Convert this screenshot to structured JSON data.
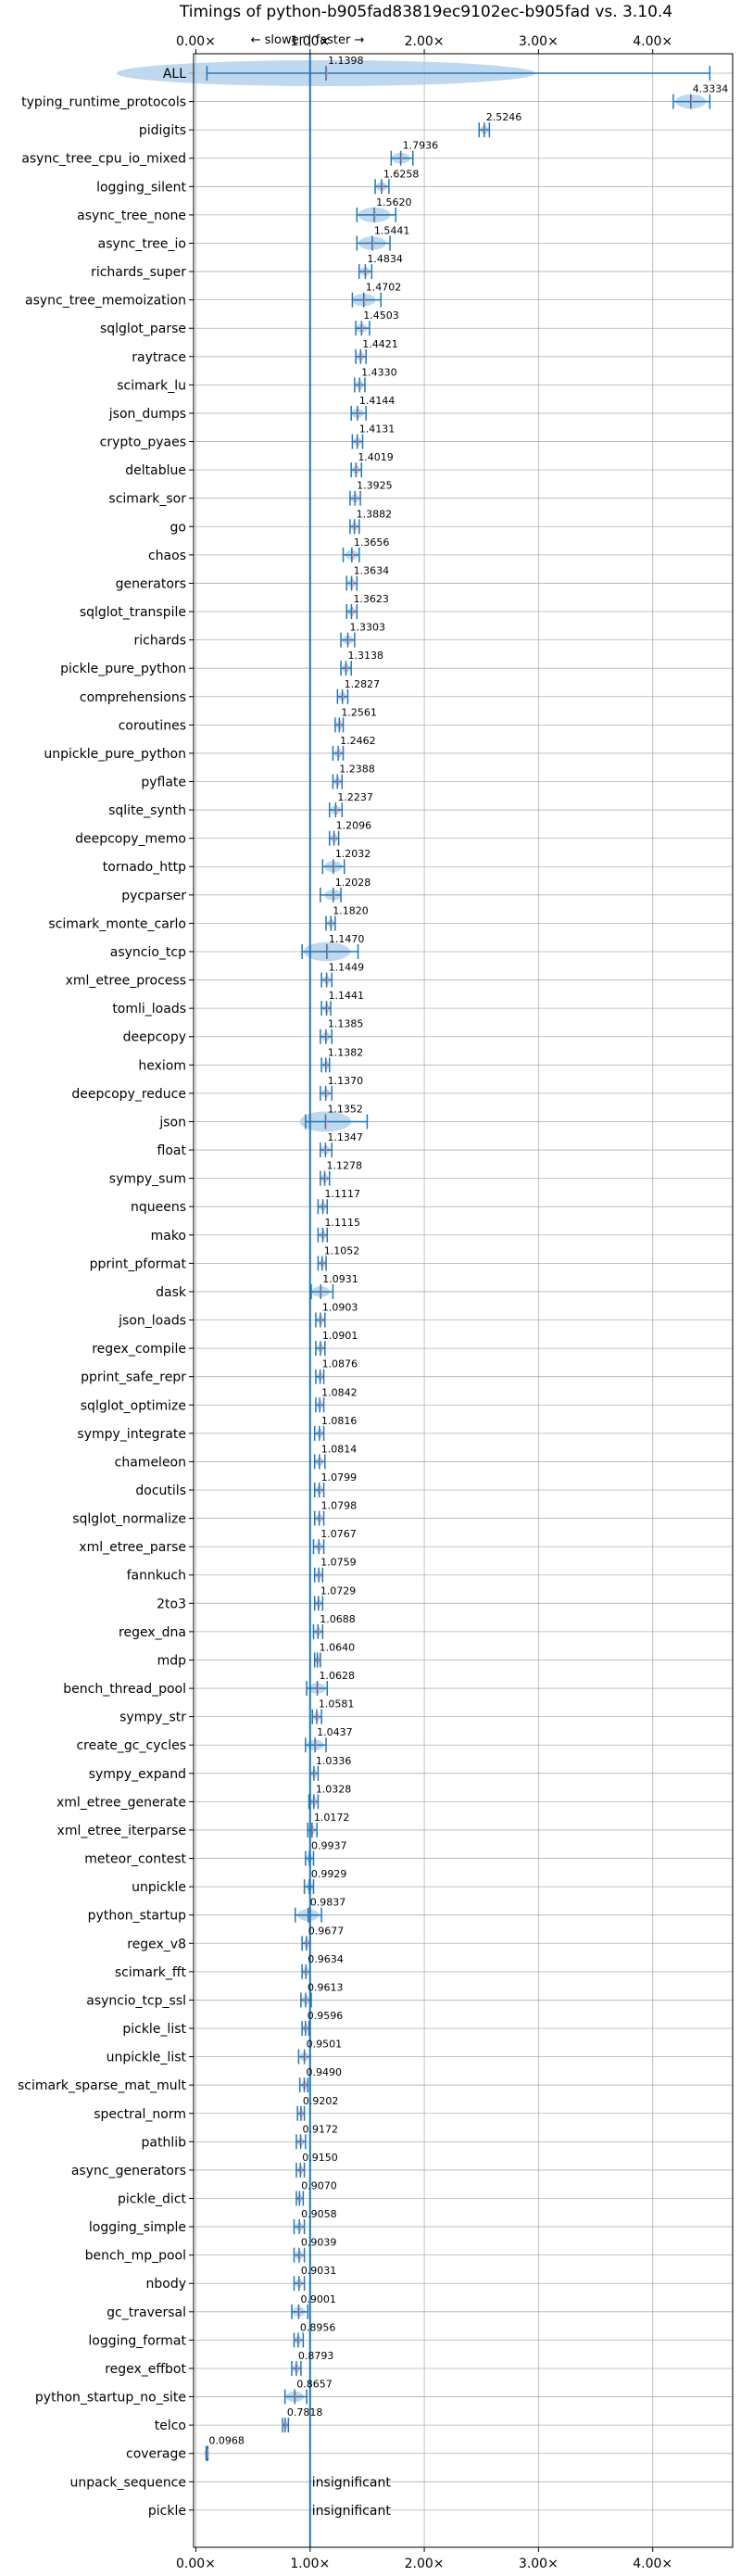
{
  "chart_data": {
    "type": "violin",
    "title": "Timings of python-b905fad83819ec9102ec-b905fad vs. 3.10.4",
    "direction_label": "← slower | faster →",
    "x_ticks": [
      "0.00×",
      "1.00×",
      "2.00×",
      "3.00×",
      "4.00×"
    ],
    "x_tick_values": [
      0,
      1,
      2,
      3,
      4
    ],
    "xlim": [
      -0.02,
      4.7
    ],
    "reference_line": 1.0,
    "grid": true,
    "insignificant_label": "insignificant",
    "colors": {
      "accent": "#1f77b4",
      "violin": "#a9cbe8",
      "grid": "#b0b0b0",
      "median": "#ff8888"
    },
    "benchmarks": [
      {
        "name": "ALL",
        "value": 1.1398,
        "label": "1.1398",
        "min": 0.0968,
        "max": 4.5
      },
      {
        "name": "typing_runtime_protocols",
        "value": 4.3334,
        "label": "4.3334",
        "min": 4.18,
        "max": 4.5
      },
      {
        "name": "pidigits",
        "value": 2.5246,
        "label": "2.5246",
        "min": 2.48,
        "max": 2.57
      },
      {
        "name": "async_tree_cpu_io_mixed",
        "value": 1.7936,
        "label": "1.7936",
        "min": 1.71,
        "max": 1.9
      },
      {
        "name": "logging_silent",
        "value": 1.6258,
        "label": "1.6258",
        "min": 1.57,
        "max": 1.69
      },
      {
        "name": "async_tree_none",
        "value": 1.562,
        "label": "1.5620",
        "min": 1.41,
        "max": 1.75
      },
      {
        "name": "async_tree_io",
        "value": 1.5441,
        "label": "1.5441",
        "min": 1.41,
        "max": 1.7
      },
      {
        "name": "richards_super",
        "value": 1.4834,
        "label": "1.4834",
        "min": 1.43,
        "max": 1.54
      },
      {
        "name": "async_tree_memoization",
        "value": 1.4702,
        "label": "1.4702",
        "min": 1.37,
        "max": 1.62
      },
      {
        "name": "sqlglot_parse",
        "value": 1.4503,
        "label": "1.4503",
        "min": 1.4,
        "max": 1.52
      },
      {
        "name": "raytrace",
        "value": 1.4421,
        "label": "1.4421",
        "min": 1.4,
        "max": 1.49
      },
      {
        "name": "scimark_lu",
        "value": 1.433,
        "label": "1.4330",
        "min": 1.39,
        "max": 1.48
      },
      {
        "name": "json_dumps",
        "value": 1.4144,
        "label": "1.4144",
        "min": 1.36,
        "max": 1.49
      },
      {
        "name": "crypto_pyaes",
        "value": 1.4131,
        "label": "1.4131",
        "min": 1.37,
        "max": 1.46
      },
      {
        "name": "deltablue",
        "value": 1.4019,
        "label": "1.4019",
        "min": 1.36,
        "max": 1.45
      },
      {
        "name": "scimark_sor",
        "value": 1.3925,
        "label": "1.3925",
        "min": 1.35,
        "max": 1.44
      },
      {
        "name": "go",
        "value": 1.3882,
        "label": "1.3882",
        "min": 1.35,
        "max": 1.43
      },
      {
        "name": "chaos",
        "value": 1.3656,
        "label": "1.3656",
        "min": 1.29,
        "max": 1.43
      },
      {
        "name": "generators",
        "value": 1.3634,
        "label": "1.3634",
        "min": 1.32,
        "max": 1.41
      },
      {
        "name": "sqlglot_transpile",
        "value": 1.3623,
        "label": "1.3623",
        "min": 1.32,
        "max": 1.41
      },
      {
        "name": "richards",
        "value": 1.3303,
        "label": "1.3303",
        "min": 1.27,
        "max": 1.39
      },
      {
        "name": "pickle_pure_python",
        "value": 1.3138,
        "label": "1.3138",
        "min": 1.27,
        "max": 1.36
      },
      {
        "name": "comprehensions",
        "value": 1.2827,
        "label": "1.2827",
        "min": 1.24,
        "max": 1.33
      },
      {
        "name": "coroutines",
        "value": 1.2561,
        "label": "1.2561",
        "min": 1.22,
        "max": 1.29
      },
      {
        "name": "unpickle_pure_python",
        "value": 1.2462,
        "label": "1.2462",
        "min": 1.2,
        "max": 1.29
      },
      {
        "name": "pyflate",
        "value": 1.2388,
        "label": "1.2388",
        "min": 1.2,
        "max": 1.28
      },
      {
        "name": "sqlite_synth",
        "value": 1.2237,
        "label": "1.2237",
        "min": 1.17,
        "max": 1.28
      },
      {
        "name": "deepcopy_memo",
        "value": 1.2096,
        "label": "1.2096",
        "min": 1.17,
        "max": 1.25
      },
      {
        "name": "tornado_http",
        "value": 1.2032,
        "label": "1.2032",
        "min": 1.11,
        "max": 1.3
      },
      {
        "name": "pycparser",
        "value": 1.2028,
        "label": "1.2028",
        "min": 1.09,
        "max": 1.27
      },
      {
        "name": "scimark_monte_carlo",
        "value": 1.182,
        "label": "1.1820",
        "min": 1.14,
        "max": 1.22
      },
      {
        "name": "asyncio_tcp",
        "value": 1.147,
        "label": "1.1470",
        "min": 0.93,
        "max": 1.42
      },
      {
        "name": "xml_etree_process",
        "value": 1.1449,
        "label": "1.1449",
        "min": 1.1,
        "max": 1.19
      },
      {
        "name": "tomli_loads",
        "value": 1.1441,
        "label": "1.1441",
        "min": 1.1,
        "max": 1.18
      },
      {
        "name": "deepcopy",
        "value": 1.1385,
        "label": "1.1385",
        "min": 1.09,
        "max": 1.19
      },
      {
        "name": "hexiom",
        "value": 1.1382,
        "label": "1.1382",
        "min": 1.1,
        "max": 1.17
      },
      {
        "name": "deepcopy_reduce",
        "value": 1.137,
        "label": "1.1370",
        "min": 1.09,
        "max": 1.19
      },
      {
        "name": "json",
        "value": 1.1352,
        "label": "1.1352",
        "min": 0.96,
        "max": 1.5
      },
      {
        "name": "float",
        "value": 1.1347,
        "label": "1.1347",
        "min": 1.09,
        "max": 1.19
      },
      {
        "name": "sympy_sum",
        "value": 1.1278,
        "label": "1.1278",
        "min": 1.09,
        "max": 1.17
      },
      {
        "name": "nqueens",
        "value": 1.1117,
        "label": "1.1117",
        "min": 1.07,
        "max": 1.15
      },
      {
        "name": "mako",
        "value": 1.1115,
        "label": "1.1115",
        "min": 1.07,
        "max": 1.15
      },
      {
        "name": "pprint_pformat",
        "value": 1.1052,
        "label": "1.1052",
        "min": 1.07,
        "max": 1.14
      },
      {
        "name": "dask",
        "value": 1.0931,
        "label": "1.0931",
        "min": 1.01,
        "max": 1.2
      },
      {
        "name": "json_loads",
        "value": 1.0903,
        "label": "1.0903",
        "min": 1.05,
        "max": 1.13
      },
      {
        "name": "regex_compile",
        "value": 1.0901,
        "label": "1.0901",
        "min": 1.05,
        "max": 1.13
      },
      {
        "name": "pprint_safe_repr",
        "value": 1.0876,
        "label": "1.0876",
        "min": 1.05,
        "max": 1.12
      },
      {
        "name": "sqlglot_optimize",
        "value": 1.0842,
        "label": "1.0842",
        "min": 1.05,
        "max": 1.12
      },
      {
        "name": "sympy_integrate",
        "value": 1.0816,
        "label": "1.0816",
        "min": 1.04,
        "max": 1.12
      },
      {
        "name": "chameleon",
        "value": 1.0814,
        "label": "1.0814",
        "min": 1.04,
        "max": 1.13
      },
      {
        "name": "docutils",
        "value": 1.0799,
        "label": "1.0799",
        "min": 1.04,
        "max": 1.12
      },
      {
        "name": "sqlglot_normalize",
        "value": 1.0798,
        "label": "1.0798",
        "min": 1.04,
        "max": 1.12
      },
      {
        "name": "xml_etree_parse",
        "value": 1.0767,
        "label": "1.0767",
        "min": 1.03,
        "max": 1.12
      },
      {
        "name": "fannkuch",
        "value": 1.0759,
        "label": "1.0759",
        "min": 1.04,
        "max": 1.11
      },
      {
        "name": "2to3",
        "value": 1.0729,
        "label": "1.0729",
        "min": 1.04,
        "max": 1.11
      },
      {
        "name": "regex_dna",
        "value": 1.0688,
        "label": "1.0688",
        "min": 1.03,
        "max": 1.11
      },
      {
        "name": "mdp",
        "value": 1.064,
        "label": "1.0640",
        "min": 1.04,
        "max": 1.09
      },
      {
        "name": "bench_thread_pool",
        "value": 1.0628,
        "label": "1.0628",
        "min": 0.97,
        "max": 1.15
      },
      {
        "name": "sympy_str",
        "value": 1.0581,
        "label": "1.0581",
        "min": 1.02,
        "max": 1.1
      },
      {
        "name": "create_gc_cycles",
        "value": 1.0437,
        "label": "1.0437",
        "min": 0.96,
        "max": 1.14
      },
      {
        "name": "sympy_expand",
        "value": 1.0336,
        "label": "1.0336",
        "min": 1.0,
        "max": 1.07
      },
      {
        "name": "xml_etree_generate",
        "value": 1.0328,
        "label": "1.0328",
        "min": 0.99,
        "max": 1.07
      },
      {
        "name": "xml_etree_iterparse",
        "value": 1.0172,
        "label": "1.0172",
        "min": 0.98,
        "max": 1.06
      },
      {
        "name": "meteor_contest",
        "value": 0.9937,
        "label": "0.9937",
        "min": 0.96,
        "max": 1.03
      },
      {
        "name": "unpickle",
        "value": 0.9929,
        "label": "0.9929",
        "min": 0.95,
        "max": 1.03
      },
      {
        "name": "python_startup",
        "value": 0.9837,
        "label": "0.9837",
        "min": 0.87,
        "max": 1.1
      },
      {
        "name": "regex_v8",
        "value": 0.9677,
        "label": "0.9677",
        "min": 0.93,
        "max": 1.0
      },
      {
        "name": "scimark_fft",
        "value": 0.9634,
        "label": "0.9634",
        "min": 0.93,
        "max": 1.0
      },
      {
        "name": "asyncio_tcp_ssl",
        "value": 0.9613,
        "label": "0.9613",
        "min": 0.92,
        "max": 1.01
      },
      {
        "name": "pickle_list",
        "value": 0.9596,
        "label": "0.9596",
        "min": 0.93,
        "max": 0.99
      },
      {
        "name": "unpickle_list",
        "value": 0.9501,
        "label": "0.9501",
        "min": 0.9,
        "max": 1.0
      },
      {
        "name": "scimark_sparse_mat_mult",
        "value": 0.949,
        "label": "0.9490",
        "min": 0.91,
        "max": 0.98
      },
      {
        "name": "spectral_norm",
        "value": 0.9202,
        "label": "0.9202",
        "min": 0.89,
        "max": 0.95
      },
      {
        "name": "pathlib",
        "value": 0.9172,
        "label": "0.9172",
        "min": 0.88,
        "max": 0.96
      },
      {
        "name": "async_generators",
        "value": 0.915,
        "label": "0.9150",
        "min": 0.88,
        "max": 0.95
      },
      {
        "name": "pickle_dict",
        "value": 0.907,
        "label": "0.9070",
        "min": 0.88,
        "max": 0.94
      },
      {
        "name": "logging_simple",
        "value": 0.9058,
        "label": "0.9058",
        "min": 0.86,
        "max": 0.95
      },
      {
        "name": "bench_mp_pool",
        "value": 0.9039,
        "label": "0.9039",
        "min": 0.86,
        "max": 0.95
      },
      {
        "name": "nbody",
        "value": 0.9031,
        "label": "0.9031",
        "min": 0.86,
        "max": 0.95
      },
      {
        "name": "gc_traversal",
        "value": 0.9001,
        "label": "0.9001",
        "min": 0.84,
        "max": 0.98
      },
      {
        "name": "logging_format",
        "value": 0.8956,
        "label": "0.8956",
        "min": 0.86,
        "max": 0.94
      },
      {
        "name": "regex_effbot",
        "value": 0.8793,
        "label": "0.8793",
        "min": 0.84,
        "max": 0.92
      },
      {
        "name": "python_startup_no_site",
        "value": 0.8657,
        "label": "0.8657",
        "min": 0.78,
        "max": 0.97
      },
      {
        "name": "telco",
        "value": 0.7818,
        "label": "0.7818",
        "min": 0.76,
        "max": 0.81
      },
      {
        "name": "coverage",
        "value": 0.0968,
        "label": "0.0968",
        "min": 0.09,
        "max": 0.105
      },
      {
        "name": "unpack_sequence",
        "value": null,
        "label": "insignificant"
      },
      {
        "name": "pickle",
        "value": null,
        "label": "insignificant"
      }
    ]
  }
}
